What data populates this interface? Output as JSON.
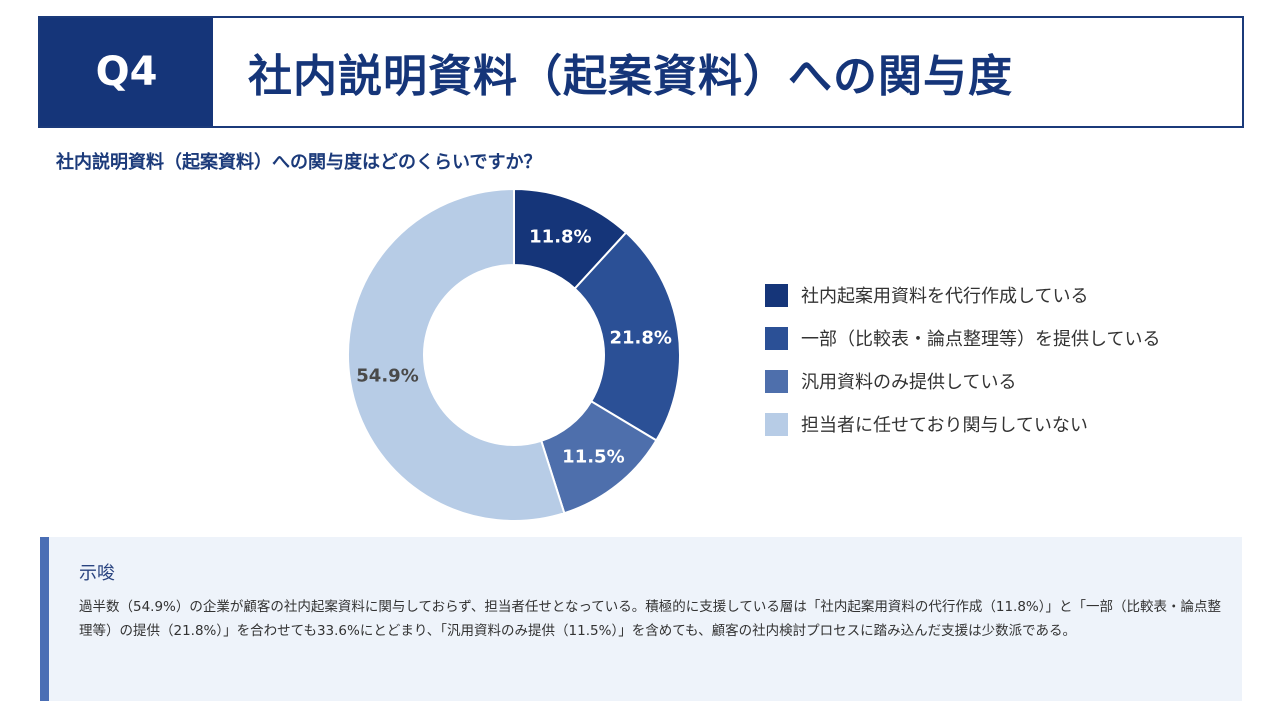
{
  "header": {
    "q_label": "Q4",
    "title": "社内説明資料（起案資料）への関与度"
  },
  "question": "社内説明資料（起案資料）への関与度はどのくらいですか？",
  "chart_data": {
    "type": "pie",
    "variant": "donut",
    "categories": [
      "社内起案用資料を代行作成している",
      "一部（比較表・論点整理等）を提供している",
      "汎用資料のみ提供している",
      "担当者に任せており関与していない"
    ],
    "values": [
      11.8,
      21.8,
      11.5,
      54.9
    ],
    "labels": [
      "11.8%",
      "21.8%",
      "11.5%",
      "54.9%"
    ],
    "colors": [
      "#153579",
      "#2b5096",
      "#4e6fac",
      "#b7cce6"
    ],
    "label_colors": [
      "#ffffff",
      "#ffffff",
      "#ffffff",
      "#4a4a4a"
    ],
    "legend_position": "right"
  },
  "insight": {
    "title": "示唆",
    "body": "過半数（54.9%）の企業が顧客の社内起案資料に関与しておらず、担当者任せとなっている。積極的に支援している層は「社内起案用資料の代行作成（11.8%）」と「一部（比較表・論点整理等）の提供（21.8%）」を合わせても33.6%にとどまり、「汎用資料のみ提供（11.5%）」を含めても、顧客の社内検討プロセスに踏み込んだ支援は少数派である。"
  }
}
